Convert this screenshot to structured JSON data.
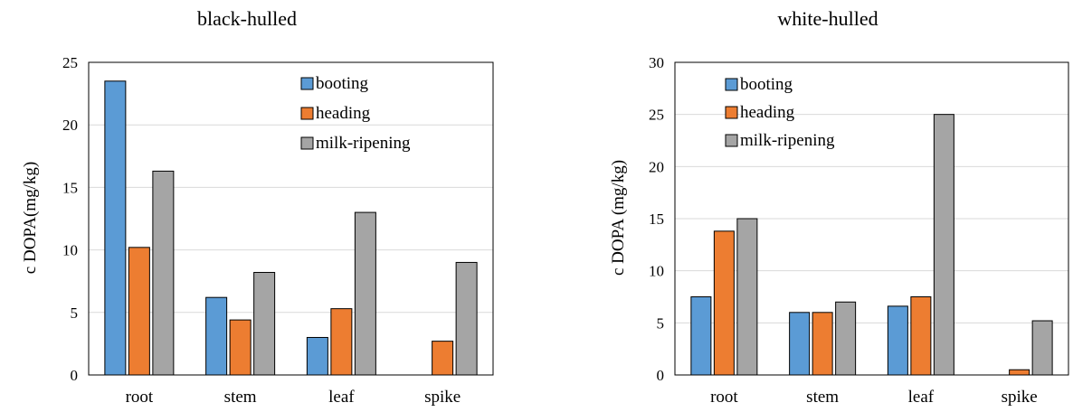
{
  "chart_data": [
    {
      "type": "bar",
      "title": "black-hulled",
      "ylabel": "c DOPA(mg/kg)",
      "xlabel": "",
      "categories": [
        "root",
        "stem",
        "leaf",
        "spike"
      ],
      "ylim": [
        0,
        25
      ],
      "yticks": [
        0,
        5,
        10,
        15,
        20,
        25
      ],
      "grid": true,
      "legend": "top-right",
      "series": [
        {
          "name": "booting",
          "color": "#5b9bd5",
          "values": [
            23.5,
            6.2,
            3.0,
            0
          ]
        },
        {
          "name": "heading",
          "color": "#ed7d31",
          "values": [
            10.2,
            4.4,
            5.3,
            2.7
          ]
        },
        {
          "name": "milk-ripening",
          "color": "#a5a5a5",
          "values": [
            16.3,
            8.2,
            13.0,
            9.0
          ]
        }
      ]
    },
    {
      "type": "bar",
      "title": "white-hulled",
      "ylabel": "c DOPA (mg/kg)",
      "xlabel": "",
      "categories": [
        "root",
        "stem",
        "leaf",
        "spike"
      ],
      "ylim": [
        0,
        30
      ],
      "yticks": [
        0,
        5,
        10,
        15,
        20,
        25,
        30
      ],
      "grid": true,
      "legend": "top-left",
      "series": [
        {
          "name": "booting",
          "color": "#5b9bd5",
          "values": [
            7.5,
            6.0,
            6.6,
            0
          ]
        },
        {
          "name": "heading",
          "color": "#ed7d31",
          "values": [
            13.8,
            6.0,
            7.5,
            0.5
          ]
        },
        {
          "name": "milk-ripening",
          "color": "#a5a5a5",
          "values": [
            15.0,
            7.0,
            25.0,
            5.2
          ]
        }
      ]
    }
  ]
}
